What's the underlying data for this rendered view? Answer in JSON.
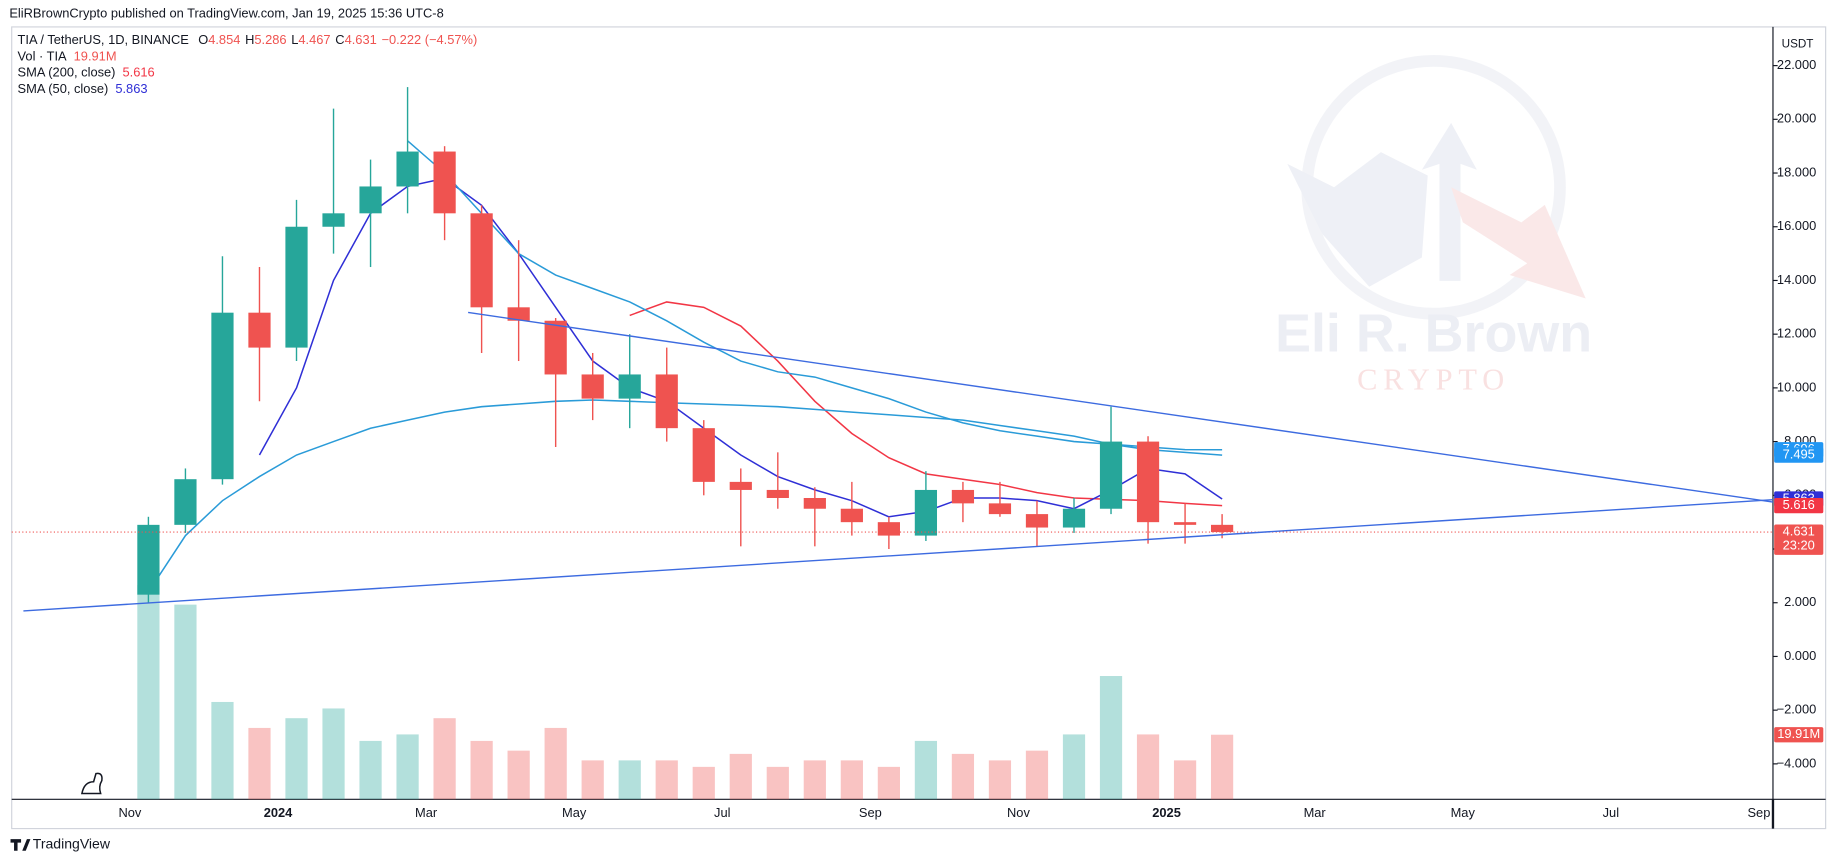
{
  "chart_data": {
    "type": "candlestick",
    "publisher": "EliRBrownCrypto published on TradingView.com, Jan 19, 2025 15:36 UTC-8",
    "symbol": "TIA / TetherUS, 1D, BINANCE",
    "ohlc_header": [
      {
        "key": "O",
        "value": 4.854
      },
      {
        "key": "H",
        "value": 5.286
      },
      {
        "key": "L",
        "value": 4.467
      },
      {
        "key": "C",
        "value": 4.631
      }
    ],
    "change": {
      "value": -0.222,
      "label": "−0.222 (−4.57%)"
    },
    "volume_name": "Vol · TIA",
    "currency": "USDT",
    "countdown": "23:20",
    "watermark": [
      "Eli R. Brown",
      "CRYPTO"
    ],
    "footer": "TradingView",
    "up_color": "#26a69a",
    "down_color": "#ef5350",
    "categories": [
      "Nov",
      null,
      null,
      null,
      "2024",
      null,
      null,
      null,
      "Mar",
      null,
      null,
      null,
      "May",
      null,
      null,
      null,
      "Jul",
      null,
      null,
      null,
      "Sep",
      null,
      null,
      null,
      "Nov",
      null,
      null,
      null,
      "2025",
      null,
      null,
      null,
      "Mar",
      null,
      null,
      null,
      "May",
      null,
      null,
      null,
      "Jul",
      null,
      null,
      null,
      "Sep"
    ],
    "ohlc": [
      [
        2.3,
        5.2,
        2.0,
        4.9
      ],
      [
        4.9,
        7.0,
        4.6,
        6.6
      ],
      [
        6.6,
        14.9,
        6.4,
        12.8
      ],
      [
        12.8,
        14.5,
        9.5,
        11.5
      ],
      [
        11.5,
        17.0,
        11.0,
        16.0
      ],
      [
        16.0,
        20.4,
        15.0,
        16.5
      ],
      [
        16.5,
        18.5,
        14.5,
        17.5
      ],
      [
        17.5,
        21.2,
        16.5,
        18.8
      ],
      [
        18.8,
        19.0,
        15.5,
        16.5
      ],
      [
        16.5,
        16.8,
        11.3,
        13.0
      ],
      [
        13.0,
        15.5,
        11.0,
        12.5
      ],
      [
        12.5,
        12.6,
        7.8,
        10.5
      ],
      [
        10.5,
        11.3,
        8.8,
        9.6
      ],
      [
        9.6,
        12.0,
        8.5,
        10.5
      ],
      [
        10.5,
        11.5,
        8.0,
        8.5
      ],
      [
        8.5,
        8.8,
        6.0,
        6.5
      ],
      [
        6.5,
        7.0,
        4.1,
        6.2
      ],
      [
        6.2,
        7.6,
        5.5,
        5.9
      ],
      [
        5.9,
        6.3,
        4.1,
        5.5
      ],
      [
        5.5,
        6.5,
        4.5,
        5.0
      ],
      [
        5.0,
        5.2,
        4.0,
        4.5
      ],
      [
        4.5,
        6.9,
        4.3,
        6.2
      ],
      [
        6.2,
        6.5,
        5.0,
        5.7
      ],
      [
        5.7,
        6.5,
        5.2,
        5.3
      ],
      [
        5.3,
        5.8,
        4.1,
        4.8
      ],
      [
        4.8,
        5.9,
        4.6,
        5.5
      ],
      [
        5.5,
        9.3,
        5.3,
        8.0
      ],
      [
        8.0,
        8.2,
        4.2,
        5.0
      ],
      [
        5.0,
        5.7,
        4.2,
        4.9
      ],
      [
        4.9,
        5.3,
        4.4,
        4.631
      ],
      null,
      null,
      null,
      null,
      null,
      null,
      null,
      null,
      null,
      null,
      null,
      null,
      null,
      null,
      null
    ],
    "volume": {
      "values": [
        66,
        60,
        30,
        22,
        25,
        28,
        18,
        20,
        25,
        18,
        15,
        22,
        12,
        12,
        12,
        10,
        14,
        10,
        12,
        12,
        10,
        18,
        14,
        12,
        15,
        20,
        38,
        20,
        12,
        19.91,
        null,
        null,
        null,
        null,
        null,
        null,
        null,
        null,
        null,
        null,
        null,
        null,
        null,
        null,
        null
      ],
      "value_labels": [
        null,
        null,
        null,
        null,
        null,
        null,
        null,
        null,
        null,
        null,
        null,
        null,
        null,
        null,
        null,
        null,
        null,
        null,
        null,
        null,
        null,
        null,
        null,
        null,
        null,
        null,
        null,
        null,
        null,
        "19.91M",
        null,
        null,
        null,
        null,
        null,
        null,
        null,
        null,
        null,
        null,
        null,
        null,
        null,
        null,
        null
      ]
    },
    "series": [
      {
        "name": "SMA (200, close)",
        "color": "#f23645",
        "values": [
          null,
          null,
          null,
          null,
          null,
          null,
          null,
          null,
          null,
          null,
          null,
          null,
          null,
          12.7,
          13.2,
          13.0,
          12.3,
          11.0,
          9.5,
          8.3,
          7.4,
          6.8,
          6.6,
          6.4,
          6.1,
          5.9,
          5.85,
          5.8,
          5.7,
          5.616,
          null,
          null,
          null,
          null,
          null,
          null,
          null,
          null,
          null,
          null,
          null,
          null,
          null,
          null,
          null
        ]
      },
      {
        "name": "SMA (50, close)",
        "color": "#2f2fd6",
        "values": [
          null,
          null,
          null,
          7.5,
          10,
          14,
          16.5,
          17.5,
          17.8,
          16.8,
          15,
          13,
          11,
          10,
          9.5,
          8.5,
          7.5,
          6.7,
          6.2,
          5.8,
          5.2,
          5.4,
          5.9,
          5.9,
          5.8,
          5.5,
          6.2,
          7.0,
          6.8,
          5.863,
          null,
          null,
          null,
          null,
          null,
          null,
          null,
          null,
          null,
          null,
          null,
          null,
          null,
          null,
          null
        ]
      },
      {
        "color": "#2a9bd8",
        "values": [
          null,
          null,
          null,
          null,
          null,
          null,
          null,
          19.2,
          18.0,
          16.5,
          15.0,
          14.2,
          13.7,
          13.2,
          12.5,
          11.7,
          11.0,
          10.6,
          10.4,
          10.0,
          9.6,
          9.1,
          8.7,
          8.4,
          8.2,
          8.0,
          7.9,
          7.8,
          7.7,
          7.696,
          null,
          null,
          null,
          null,
          null,
          null,
          null,
          null,
          null,
          null,
          null,
          null,
          null,
          null,
          null
        ]
      },
      {
        "color": "#2a9bd8",
        "values": [
          2.4,
          4.5,
          5.8,
          6.7,
          7.5,
          8.0,
          8.5,
          8.8,
          9.1,
          9.3,
          9.4,
          9.5,
          9.55,
          9.5,
          9.45,
          9.4,
          9.35,
          9.3,
          9.2,
          9.1,
          9.0,
          8.9,
          8.8,
          8.6,
          8.4,
          8.2,
          7.9,
          7.7,
          7.6,
          7.495,
          null,
          null,
          null,
          null,
          null,
          null,
          null,
          null,
          null,
          null,
          null,
          null,
          null,
          null,
          null
        ]
      }
    ],
    "ylim": [
      -5.32,
      23.44
    ],
    "yticks": [
      {
        "value": 22,
        "label": "22.000"
      },
      {
        "value": 20,
        "label": "20.000"
      },
      {
        "value": 18,
        "label": "18.000"
      },
      {
        "value": 16,
        "label": "16.000"
      },
      {
        "value": 14,
        "label": "14.000"
      },
      {
        "value": 12,
        "label": "12.000"
      },
      {
        "value": 10,
        "label": "10.000"
      },
      {
        "value": 8,
        "label": "8.000"
      },
      {
        "value": 6,
        "label": "6.000"
      },
      {
        "value": 4,
        "label": "4.000"
      },
      {
        "value": 2,
        "label": "2.000"
      },
      {
        "value": 0,
        "label": "0.000"
      },
      {
        "value": -2,
        "label": "−2.000"
      },
      {
        "value": -4,
        "label": "−4.000"
      }
    ],
    "grid": false
  }
}
